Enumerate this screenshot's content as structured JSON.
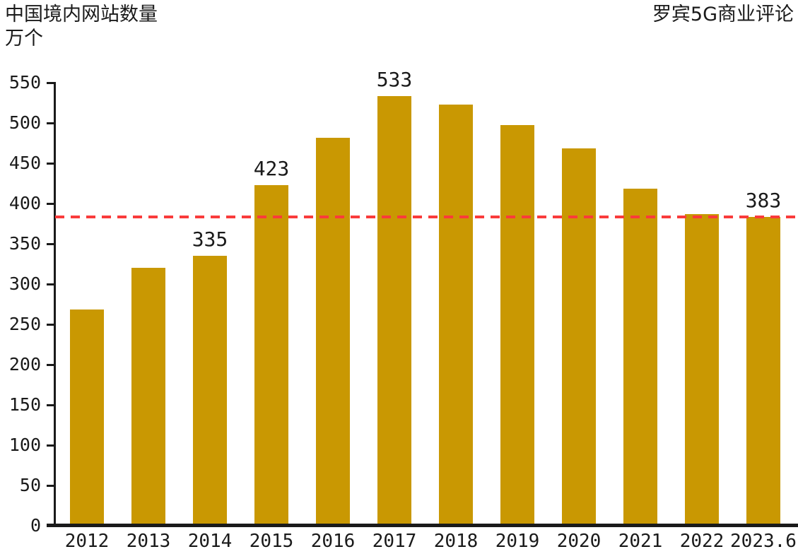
{
  "chart_data": {
    "type": "bar",
    "title": "中国境内网站数量",
    "unit_label": "万个",
    "source_label": "罗宾5G商业评论",
    "categories": [
      "2012",
      "2013",
      "2014",
      "2015",
      "2016",
      "2017",
      "2018",
      "2019",
      "2020",
      "2021",
      "2022",
      "2023.6"
    ],
    "values": [
      268,
      320,
      335,
      423,
      482,
      533,
      523,
      497,
      468,
      418,
      387,
      383
    ],
    "bar_labels": [
      null,
      null,
      "335",
      "423",
      null,
      "533",
      null,
      null,
      null,
      null,
      null,
      "383"
    ],
    "bar_color": "#C99802",
    "xlabel": "",
    "ylabel": "万个",
    "y_ticks": [
      0,
      50,
      100,
      150,
      200,
      250,
      300,
      350,
      400,
      450,
      500,
      550
    ],
    "ylim": [
      0,
      550
    ],
    "grid": false,
    "legend": null,
    "axis_color": "#1A1A1A",
    "reference_line": {
      "value": 383,
      "color": "#F93B3B",
      "style": "dashed"
    }
  }
}
